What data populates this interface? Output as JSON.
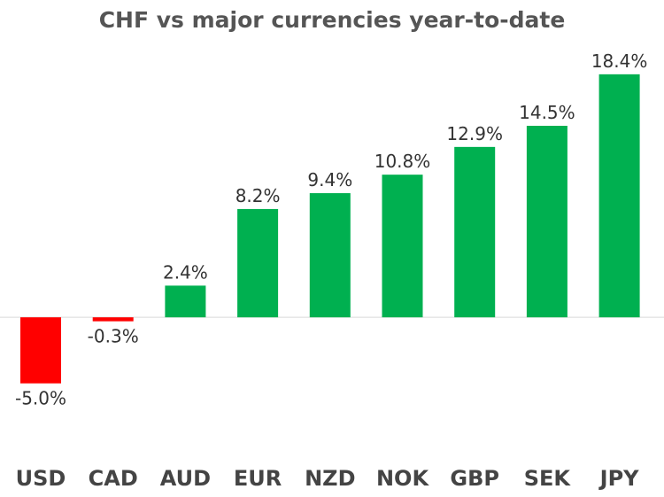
{
  "chart_data": {
    "type": "bar",
    "title": "CHF vs major currencies year-to-date",
    "xlabel": "",
    "ylabel": "",
    "categories": [
      "USD",
      "CAD",
      "AUD",
      "EUR",
      "NZD",
      "NOK",
      "GBP",
      "SEK",
      "JPY"
    ],
    "values": [
      -5.0,
      -0.3,
      2.4,
      8.2,
      9.4,
      10.8,
      12.9,
      14.5,
      18.4
    ],
    "data_labels": [
      "-5.0%",
      "-0.3%",
      "2.4%",
      "8.2%",
      "9.4%",
      "10.8%",
      "12.9%",
      "14.5%",
      "18.4%"
    ],
    "ylim": [
      -7.5,
      20
    ],
    "grid": false,
    "legend": "none",
    "colors": {
      "positive": "#00b050",
      "negative": "#ff0000",
      "baseline": "#d9d9d9"
    }
  }
}
